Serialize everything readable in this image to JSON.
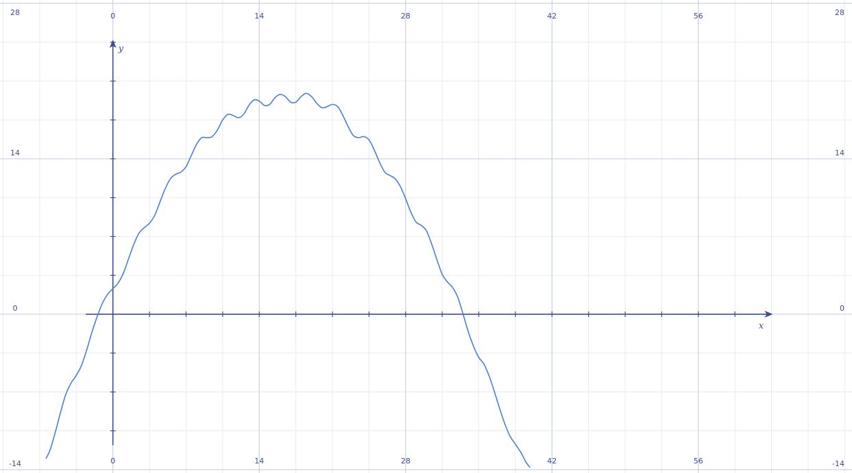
{
  "colors": {
    "background": "#ffffff",
    "grid_minor": "#e7ebf2",
    "grid_major": "#c5cedd",
    "axis": "#3b4d8f",
    "curve": "#4a7fd4",
    "label": "#3b4d8f"
  },
  "chart_data": {
    "type": "line",
    "title": "",
    "xlabel": "x",
    "ylabel": "y",
    "xlim": [
      -10.8,
      70.7
    ],
    "ylim": [
      -14.3,
      28.3
    ],
    "x_ticks": [
      0,
      14,
      28,
      42,
      56
    ],
    "x_tick_labels": [
      "0",
      "14",
      "28",
      "42",
      "56"
    ],
    "y_ticks": [
      -14,
      0,
      14,
      28
    ],
    "y_tick_labels": [
      "-14",
      "0",
      "14",
      "28"
    ],
    "grid": true,
    "minor_grid_step": 3.5,
    "axis_arrows": {
      "x_axis_from": -2.6,
      "x_axis_to": 63.0,
      "y_axis_from": -11.8,
      "y_axis_to": 24.6
    },
    "series": [
      {
        "x": [
          -6.4,
          -6.0,
          -5.5,
          -5.0,
          -4.5,
          -4.0,
          -3.5,
          -3.0,
          -2.5,
          -2.0,
          -1.5,
          -1.0,
          -0.5,
          0.0,
          0.5,
          1.0,
          1.5,
          2.0,
          2.5,
          3.0,
          3.5,
          4.0,
          4.5,
          5.0,
          5.5,
          6.0,
          6.5,
          7.0,
          7.5,
          8.0,
          8.5,
          9.0,
          9.5,
          10.0,
          10.5,
          11.0,
          11.5,
          12.0,
          12.5,
          13.0,
          13.5,
          14.0,
          14.5,
          15.0,
          15.5,
          16.0,
          16.5,
          17.0,
          17.5,
          18.0,
          18.5,
          19.0,
          19.5,
          20.0,
          20.5,
          21.0,
          21.5,
          22.0,
          22.5,
          23.0,
          23.5,
          24.0,
          24.5,
          25.0,
          25.5,
          26.0,
          26.5,
          27.0,
          27.5,
          28.0,
          28.5,
          29.0,
          29.5,
          30.0,
          30.5,
          31.0,
          31.5,
          32.0,
          32.5,
          33.0,
          33.5,
          34.0,
          34.5,
          35.0,
          35.5,
          36.0,
          36.5,
          37.0,
          37.5,
          38.0,
          38.5,
          39.0,
          39.5,
          39.9
        ],
        "y": [
          -13.0,
          -12.2,
          -10.6,
          -8.8,
          -7.2,
          -6.2,
          -5.5,
          -4.6,
          -3.2,
          -1.6,
          -0.2,
          1.0,
          1.8,
          2.3,
          2.8,
          3.7,
          5.0,
          6.3,
          7.3,
          7.8,
          8.2,
          8.9,
          10.1,
          11.3,
          12.2,
          12.6,
          12.8,
          13.3,
          14.3,
          15.3,
          15.9,
          15.9,
          16.0,
          16.6,
          17.5,
          18.0,
          17.9,
          17.7,
          18.0,
          18.8,
          19.3,
          19.2,
          18.8,
          18.9,
          19.5,
          19.8,
          19.6,
          19.1,
          19.1,
          19.6,
          19.9,
          19.6,
          19.0,
          18.6,
          18.7,
          18.9,
          18.7,
          17.9,
          16.9,
          16.1,
          15.9,
          16.0,
          15.7,
          14.8,
          13.7,
          12.8,
          12.5,
          12.2,
          11.5,
          10.4,
          9.2,
          8.3,
          8.0,
          7.5,
          6.3,
          4.9,
          3.6,
          2.9,
          2.4,
          1.5,
          0.0,
          -1.6,
          -2.9,
          -3.9,
          -4.5,
          -5.6,
          -7.0,
          -8.5,
          -9.9,
          -11.0,
          -11.7,
          -12.4,
          -13.3,
          -13.8
        ]
      }
    ]
  }
}
